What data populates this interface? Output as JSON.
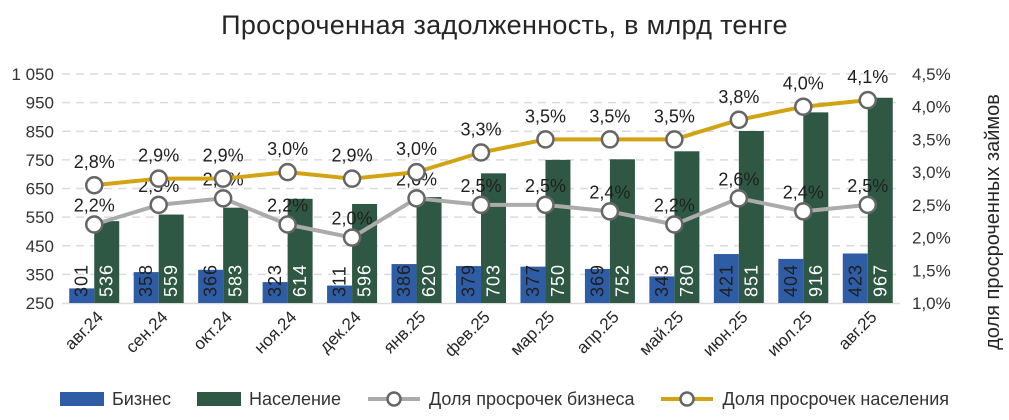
{
  "title": "Просроченная задолженность, в млрд тенге",
  "chart_data": {
    "type": "combo",
    "categories": [
      "авг.24",
      "сен.24",
      "окт.24",
      "ноя.24",
      "дек.24",
      "янв.25",
      "фев.25",
      "мар.25",
      "апр.25",
      "май.25",
      "июн.25",
      "июл.25",
      "авг.25"
    ],
    "bar_series": [
      {
        "name": "Бизнес",
        "color": "#2E5CA5",
        "values": [
          301,
          358,
          366,
          323,
          311,
          386,
          379,
          377,
          369,
          343,
          421,
          404,
          423
        ],
        "label_color": "#1f1f1f"
      },
      {
        "name": "Население",
        "color": "#2E5843",
        "values": [
          536,
          559,
          583,
          614,
          596,
          620,
          703,
          750,
          752,
          780,
          851,
          916,
          967
        ],
        "label_color": "#ffffff"
      }
    ],
    "line_series": [
      {
        "name": "Доля просрочек бизнеса",
        "color": "#ABABAB",
        "values": [
          2.2,
          2.5,
          2.6,
          2.2,
          2.0,
          2.6,
          2.5,
          2.5,
          2.4,
          2.2,
          2.6,
          2.4,
          2.5
        ],
        "labels": [
          "2,2%",
          "2,5%",
          "2,6%",
          "2,2%",
          "2,0%",
          "2,6%",
          "2,5%",
          "2,5%",
          "2,4%",
          "2,2%",
          "2,6%",
          "2,4%",
          "2,5%"
        ]
      },
      {
        "name": "Доля просрочек населения",
        "color": "#D2A413",
        "values": [
          2.8,
          2.9,
          2.9,
          3.0,
          2.9,
          3.0,
          3.3,
          3.5,
          3.5,
          3.5,
          3.8,
          4.0,
          4.1
        ],
        "labels": [
          "2,8%",
          "2,9%",
          "2,9%",
          "3,0%",
          "2,9%",
          "3,0%",
          "3,3%",
          "3,5%",
          "3,5%",
          "3,5%",
          "3,8%",
          "4,0%",
          "4,1%"
        ]
      }
    ],
    "left_axis": {
      "min": 250,
      "max": 1050,
      "step": 100,
      "tick_labels": [
        "1 050",
        "950",
        "850",
        "750",
        "650",
        "550",
        "450",
        "350",
        "250"
      ]
    },
    "right_axis": {
      "min": 1.0,
      "max": 4.5,
      "step": 0.5,
      "title": "доля просроченных займов",
      "tick_labels": [
        "4,5%",
        "4,0%",
        "3,5%",
        "3,0%",
        "2,5%",
        "2,0%",
        "1,5%",
        "1,0%"
      ]
    },
    "grid": true,
    "legend_position": "bottom",
    "marker_ring_color": "#666666",
    "grid_color": "#DBDBDB"
  }
}
